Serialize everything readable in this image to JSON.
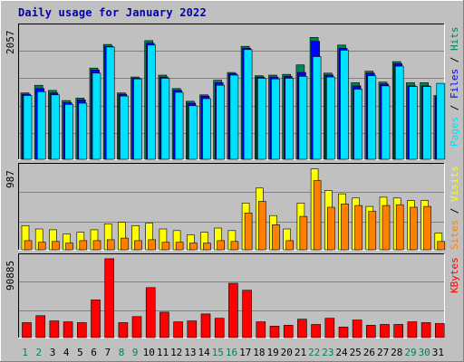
{
  "title": "Daily usage for January 2022",
  "colors": {
    "hits": "#00805c",
    "files": "#0000ff",
    "pages": "#00e0ff",
    "visits": "#ffff00",
    "sites": "#ff8000",
    "kbytes": "#ff0000",
    "weekend_label": "#00805c",
    "weekday_label": "#000000",
    "background": "#c0c0c0",
    "plot_bg": "#c0c0c0"
  },
  "chart_data": [
    {
      "type": "bar",
      "name": "hits-files-pages",
      "y_max_label": "2057",
      "ylim": [
        0,
        2057
      ],
      "right_labels": [
        "Pages",
        "Files",
        "Hits"
      ],
      "x": [
        "1",
        "2",
        "3",
        "4",
        "5",
        "6",
        "7",
        "8",
        "9",
        "10",
        "11",
        "12",
        "13",
        "14",
        "15",
        "16",
        "17",
        "18",
        "19",
        "20",
        "21",
        "22",
        "23",
        "24",
        "25",
        "26",
        "27",
        "28",
        "29",
        "30",
        "31"
      ],
      "series": [
        {
          "name": "Hits",
          "values": [
            1040,
            1160,
            1080,
            920,
            960,
            1430,
            1800,
            1040,
            1290,
            1860,
            1320,
            1110,
            910,
            1010,
            1240,
            1360,
            1770,
            1310,
            1320,
            1330,
            1480,
            1910,
            1350,
            1790,
            1200,
            1380,
            1210,
            1530,
            1200,
            1200,
            1000
          ]
        },
        {
          "name": "Files",
          "values": [
            1020,
            1110,
            1040,
            890,
            930,
            1400,
            1770,
            1020,
            1270,
            1820,
            1290,
            1080,
            880,
            990,
            1200,
            1340,
            1740,
            1290,
            1290,
            1300,
            1360,
            1850,
            1320,
            1740,
            1150,
            1350,
            1180,
            1500,
            1150,
            1150,
            980
          ]
        },
        {
          "name": "Pages",
          "values": [
            1000,
            1060,
            1010,
            860,
            880,
            1350,
            1760,
            990,
            1260,
            1790,
            1270,
            1050,
            840,
            950,
            1160,
            1320,
            1720,
            1270,
            1260,
            1270,
            1300,
            1610,
            1290,
            1710,
            1100,
            1310,
            1150,
            1460,
            1140,
            1140,
            1190
          ]
        }
      ]
    },
    {
      "type": "bar",
      "name": "visits-sites",
      "y_max_label": "987",
      "ylim": [
        0,
        987
      ],
      "right_labels": [
        "Sites",
        "Visits"
      ],
      "x": [
        "1",
        "2",
        "3",
        "4",
        "5",
        "6",
        "7",
        "8",
        "9",
        "10",
        "11",
        "12",
        "13",
        "14",
        "15",
        "16",
        "17",
        "18",
        "19",
        "20",
        "21",
        "22",
        "23",
        "24",
        "25",
        "26",
        "27",
        "28",
        "29",
        "30",
        "31"
      ],
      "series": [
        {
          "name": "Visits",
          "values": [
            290,
            250,
            240,
            190,
            210,
            240,
            310,
            330,
            290,
            320,
            250,
            230,
            180,
            210,
            260,
            230,
            560,
            740,
            410,
            250,
            560,
            970,
            710,
            670,
            620,
            520,
            630,
            620,
            590,
            590,
            200
          ]
        },
        {
          "name": "Sites",
          "values": [
            110,
            90,
            100,
            80,
            110,
            110,
            120,
            140,
            110,
            120,
            90,
            90,
            80,
            80,
            110,
            100,
            440,
            580,
            300,
            110,
            400,
            830,
            510,
            550,
            530,
            460,
            530,
            540,
            510,
            520,
            100
          ]
        }
      ]
    },
    {
      "type": "bar",
      "name": "kbytes",
      "y_max_label": "90885",
      "ylim": [
        0,
        90885
      ],
      "right_labels": [
        "KBytes"
      ],
      "x": [
        "1",
        "2",
        "3",
        "4",
        "5",
        "6",
        "7",
        "8",
        "9",
        "10",
        "11",
        "12",
        "13",
        "14",
        "15",
        "16",
        "17",
        "18",
        "19",
        "20",
        "21",
        "22",
        "23",
        "24",
        "25",
        "26",
        "27",
        "28",
        "29",
        "30",
        "31"
      ],
      "series": [
        {
          "name": "KBytes",
          "values": [
            17000,
            25000,
            19000,
            18000,
            17000,
            43000,
            90000,
            17000,
            24000,
            57000,
            29000,
            18000,
            19000,
            27000,
            22000,
            62000,
            54000,
            18000,
            13000,
            14000,
            21000,
            15000,
            22000,
            12000,
            20000,
            14000,
            15000,
            15000,
            18000,
            17000,
            16000
          ]
        }
      ]
    }
  ],
  "x_labels": [
    "1",
    "2",
    "3",
    "4",
    "5",
    "6",
    "7",
    "8",
    "9",
    "10",
    "11",
    "12",
    "13",
    "14",
    "15",
    "16",
    "17",
    "18",
    "19",
    "20",
    "21",
    "22",
    "23",
    "24",
    "25",
    "26",
    "27",
    "28",
    "29",
    "30",
    "31"
  ],
  "weekend_days": [
    "1",
    "2",
    "8",
    "9",
    "15",
    "16",
    "22",
    "23",
    "29",
    "30"
  ]
}
